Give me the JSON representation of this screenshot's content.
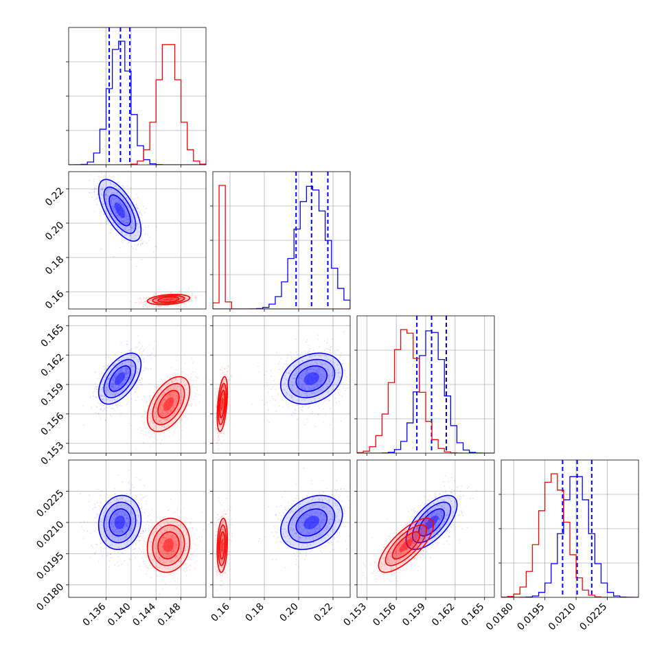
{
  "chart_data": {
    "type": "corner",
    "params": [
      {
        "range": [
          0.13,
          0.152
        ],
        "ticks": [
          0.136,
          0.14,
          0.144,
          0.148
        ],
        "tick_labels": [
          "0.136",
          "0.140",
          "0.144",
          "0.148"
        ]
      },
      {
        "range": [
          0.15,
          0.23
        ],
        "ticks": [
          0.16,
          0.18,
          0.2,
          0.22
        ],
        "tick_labels": [
          "0.16",
          "0.18",
          "0.20",
          "0.22"
        ]
      },
      {
        "range": [
          0.152,
          0.166
        ],
        "ticks": [
          0.153,
          0.156,
          0.159,
          0.162,
          0.165
        ],
        "tick_labels": [
          "0.153",
          "0.156",
          "0.159",
          "0.162",
          "0.165"
        ]
      },
      {
        "range": [
          0.0174,
          0.024
        ],
        "ticks": [
          0.018,
          0.0195,
          0.021,
          0.0225
        ],
        "tick_labels": [
          "0.0180",
          "0.0195",
          "0.0210",
          "0.0225"
        ]
      }
    ],
    "series": [
      {
        "color": "#0000ff",
        "means": [
          0.1382,
          0.2075,
          0.1596,
          0.021
        ],
        "sigmas": [
          0.0017,
          0.009,
          0.0013,
          0.00065
        ],
        "corr": [
          [
            1,
            -0.65,
            0.55,
            0.1
          ],
          [
            -0.65,
            1,
            0.25,
            0.3
          ],
          [
            0.55,
            0.25,
            1,
            0.65
          ],
          [
            0.1,
            0.3,
            0.65,
            1
          ]
        ],
        "quantile_lines": [
          [
            0.1365,
            0.1383,
            0.1398
          ],
          [
            0.1985,
            0.2075,
            0.217
          ],
          [
            0.1581,
            0.1596,
            0.1611
          ],
          [
            0.02035,
            0.02105,
            0.02175
          ]
        ]
      },
      {
        "color": "#ff0000",
        "means": [
          0.146,
          0.1555,
          0.157,
          0.0199
        ],
        "sigmas": [
          0.0017,
          0.0015,
          0.0014,
          0.00065
        ],
        "corr": [
          [
            1,
            0.3,
            0.5,
            0.1
          ],
          [
            0.3,
            1,
            0.45,
            0.2
          ],
          [
            0.5,
            0.45,
            1,
            0.75
          ],
          [
            0.1,
            0.2,
            0.75,
            1
          ]
        ],
        "quantile_lines": []
      }
    ],
    "grid": true
  }
}
